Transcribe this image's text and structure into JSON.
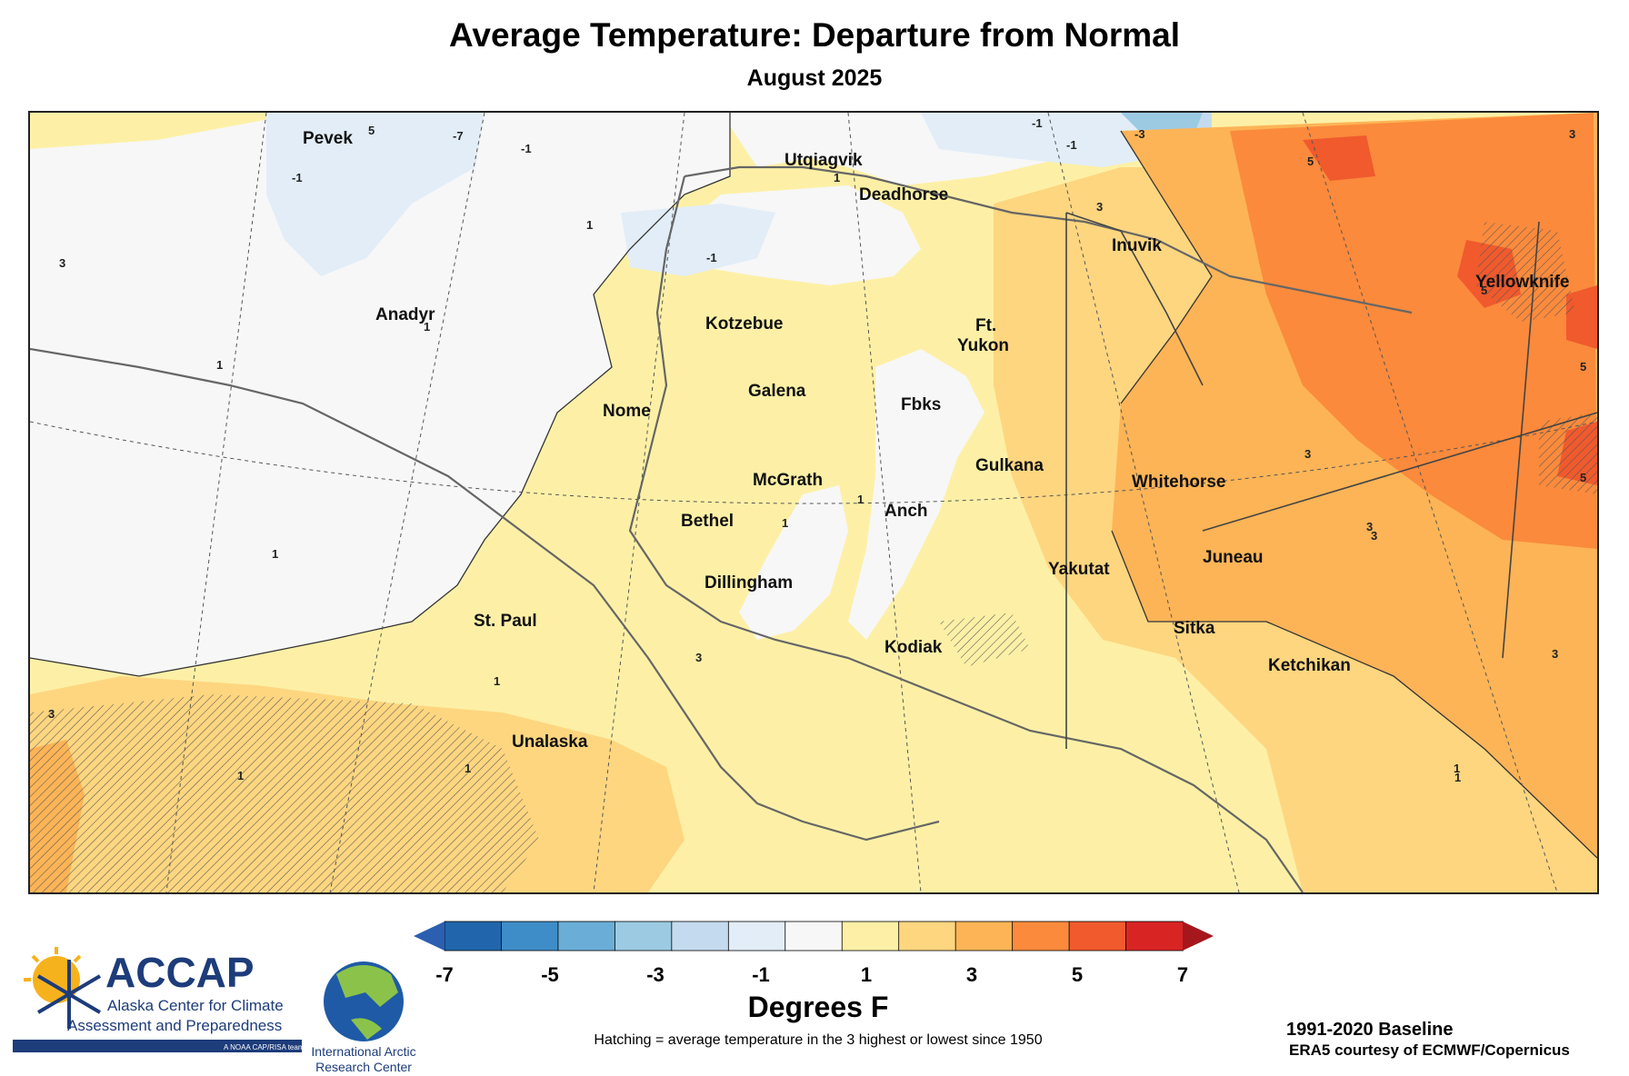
{
  "title": "Average Temperature: Departure from Normal",
  "subtitle": "August 2025",
  "legend": {
    "title": "Degrees F",
    "ticks": [
      "-7",
      "-5",
      "-3",
      "-1",
      "1",
      "3",
      "5",
      "7"
    ],
    "colors": [
      "#2166ac",
      "#3f8dc8",
      "#6aaed8",
      "#9ccae3",
      "#c4dbef",
      "#e2edf7",
      "#f7f7f7",
      "#fdf0a6",
      "#fed680",
      "#fdb456",
      "#fb8a3c",
      "#f05a2d",
      "#d92424"
    ],
    "under_color": "#2b5fb0",
    "over_color": "#a5171d"
  },
  "hatch_note": "Hatching = average temperature in the 3 highest or lowest since 1950",
  "baseline": "1991-2020 Baseline",
  "credit": "ERA5 courtesy of ECMWF/Copernicus",
  "logos": {
    "accap_name": "ACCAP",
    "accap_line1": "Alaska Center for Climate",
    "accap_line2": "Assessment and Preparedness",
    "accap_tag": "A NOAA CAP/RISA team",
    "iarc_line1": "International Arctic",
    "iarc_line2": "Research Center"
  },
  "cities": [
    {
      "name": "Pevek"
    },
    {
      "name": "Utqiagvik"
    },
    {
      "name": "Deadhorse"
    },
    {
      "name": "Inuvik"
    },
    {
      "name": "Yellowknife"
    },
    {
      "name": "Anadyr"
    },
    {
      "name": "Kotzebue"
    },
    {
      "name": "Ft."
    },
    {
      "name": "Yukon"
    },
    {
      "name": "Galena"
    },
    {
      "name": "Nome"
    },
    {
      "name": "Fbks"
    },
    {
      "name": "Gulkana"
    },
    {
      "name": "Whitehorse"
    },
    {
      "name": "McGrath"
    },
    {
      "name": "Bethel"
    },
    {
      "name": "Anch"
    },
    {
      "name": "Juneau"
    },
    {
      "name": "Yakutat"
    },
    {
      "name": "Dillingham"
    },
    {
      "name": "St. Paul"
    },
    {
      "name": "Sitka"
    },
    {
      "name": "Kodiak"
    },
    {
      "name": "Ketchikan"
    },
    {
      "name": "Unalaska"
    }
  ],
  "contour_labels": [
    "5",
    "-7",
    "-1",
    "-1",
    "-3",
    "-1",
    "1",
    "-1",
    "1",
    "5",
    "3",
    "3",
    "5",
    "1",
    "1",
    "1",
    "1",
    "3",
    "5",
    "5",
    "3",
    "1",
    "3",
    "3",
    "1",
    "3",
    "1",
    "1",
    "1",
    "3",
    "3",
    "-1",
    "1"
  ]
}
